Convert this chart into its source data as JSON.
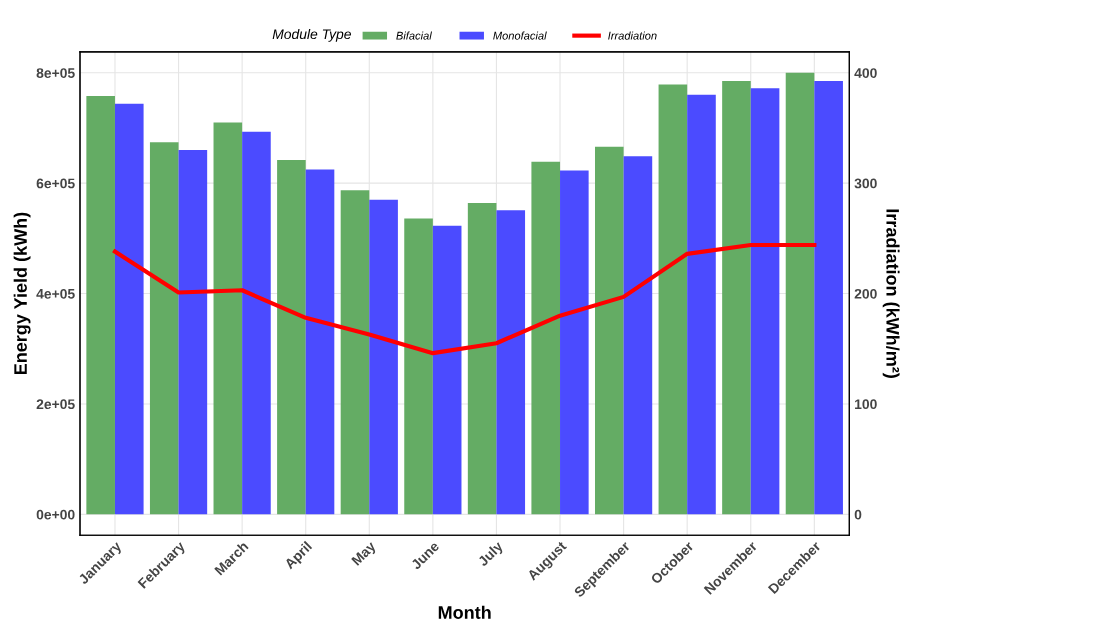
{
  "chart_data": {
    "type": "bar",
    "xlabel": "Month",
    "ylabel": "Energy Yield (kWh)",
    "y2label": "Irradiation (kWh/m²)",
    "legend_title": "Module Type",
    "categories": [
      "January",
      "February",
      "March",
      "April",
      "May",
      "June",
      "July",
      "August",
      "September",
      "October",
      "November",
      "December"
    ],
    "series": [
      {
        "name": "Bifacial",
        "color": "#64ac64",
        "values": [
          758000,
          674000,
          710000,
          642000,
          587000,
          536000,
          564000,
          639000,
          666000,
          779000,
          785000,
          800000
        ]
      },
      {
        "name": "Monofacial",
        "color": "#4b4bff",
        "values": [
          744000,
          660000,
          693000,
          625000,
          570000,
          523000,
          551000,
          623000,
          649000,
          760000,
          772000,
          785000
        ]
      },
      {
        "name": "Irradiation",
        "type": "line",
        "axis": "y2",
        "color": "#ff0000",
        "values": [
          238,
          201,
          203,
          178,
          163,
          146,
          155,
          180,
          197,
          236,
          244,
          244
        ]
      }
    ],
    "ylim": [
      -38000,
      838000
    ],
    "yticks": [
      {
        "value": 0,
        "label": "0e+00"
      },
      {
        "value": 200000,
        "label": "2e+05"
      },
      {
        "value": 400000,
        "label": "4e+05"
      },
      {
        "value": 600000,
        "label": "6e+05"
      },
      {
        "value": 800000,
        "label": "8e+05"
      }
    ],
    "y2lim": [
      -19,
      419
    ],
    "y2ticks": [
      0,
      100,
      200,
      300,
      400
    ],
    "grid": true,
    "legend": "top",
    "marker": "none",
    "line_style": "solid"
  }
}
